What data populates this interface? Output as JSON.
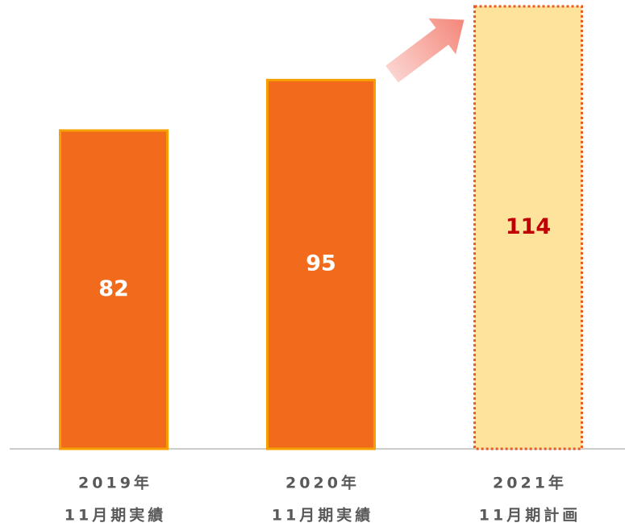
{
  "chart_data": {
    "type": "bar",
    "categories": [
      [
        "2019年",
        "11月期実績"
      ],
      [
        "2020年",
        "11月期実績"
      ],
      [
        "2021年",
        "11月期計画"
      ]
    ],
    "values": [
      82,
      95,
      114
    ],
    "colors": [
      "#f26b1d",
      "#f26b1d",
      "#fde39b"
    ],
    "border_colors": [
      "#f5a000",
      "#f5a000",
      "#ea5a1e"
    ],
    "dashed": [
      false,
      false,
      true
    ],
    "label_colors": [
      "#ffffff",
      "#ffffff",
      "#c00000"
    ],
    "ylim": [
      0,
      115
    ]
  }
}
